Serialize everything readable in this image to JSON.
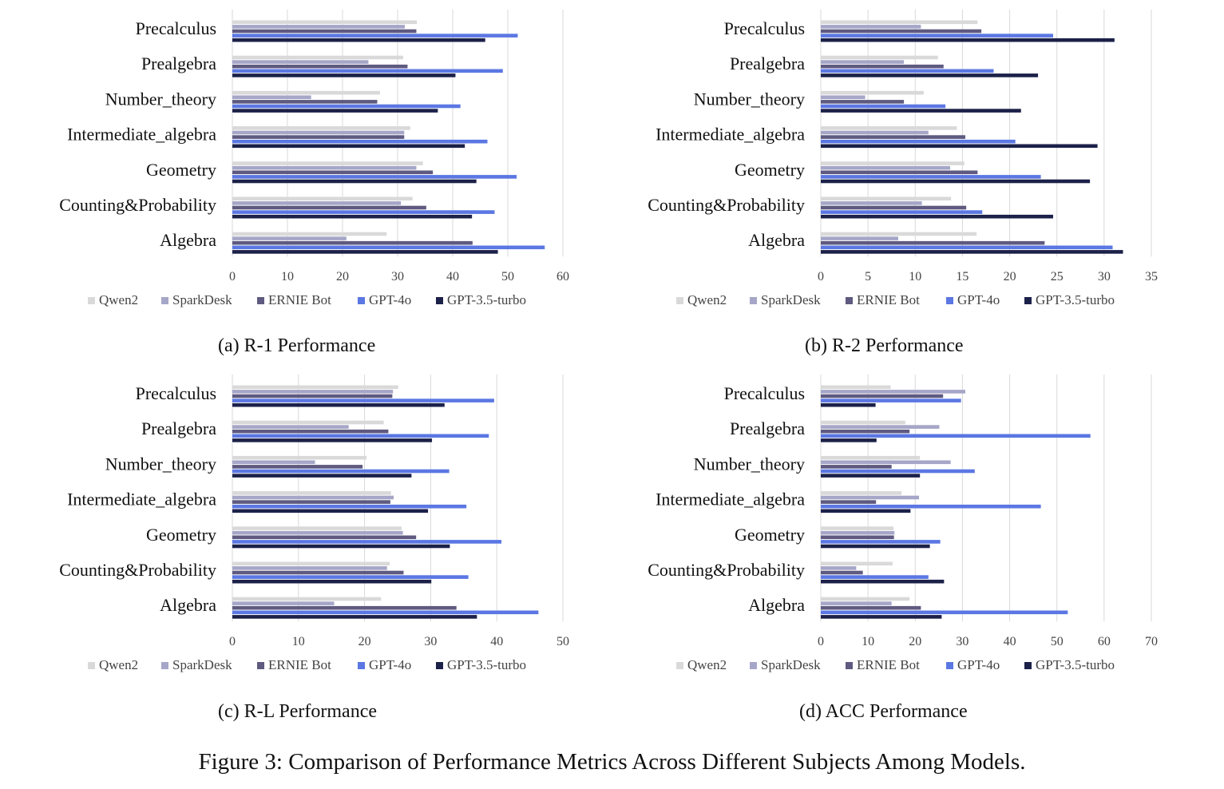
{
  "colors": {
    "Qwen2": "#d9d9d9",
    "SparkDesk": "#a6a6c8",
    "ERNIE Bot": "#5e5a80",
    "GPT-4o": "#5b77e3",
    "GPT-3.5-turbo": "#1c2149",
    "grid": "#d9d9d9"
  },
  "chart_data": [
    {
      "type": "bar",
      "orientation": "horizontal",
      "caption": "(a) R-1 Performance",
      "categories": [
        "Precalculus",
        "Prealgebra",
        "Number_theory",
        "Intermediate_algebra",
        "Geometry",
        "Counting&Probability",
        "Algebra"
      ],
      "xlim": [
        0,
        60
      ],
      "xticks": [
        0,
        10,
        20,
        30,
        40,
        50,
        60
      ],
      "grid": true,
      "legend_position": "bottom",
      "series": [
        {
          "name": "Qwen2",
          "values": [
            33.5,
            31,
            26.8,
            32.3,
            34.6,
            32.7,
            28
          ]
        },
        {
          "name": "SparkDesk",
          "values": [
            31.3,
            24.7,
            14.3,
            31.2,
            33.4,
            30.6,
            20.7
          ]
        },
        {
          "name": "ERNIE Bot",
          "values": [
            33.4,
            31.8,
            26.3,
            31.2,
            36.4,
            35.2,
            43.6
          ]
        },
        {
          "name": "GPT-4o",
          "values": [
            51.8,
            49.1,
            41.4,
            46.3,
            51.6,
            47.6,
            56.7
          ]
        },
        {
          "name": "GPT-3.5-turbo",
          "values": [
            45.9,
            40.5,
            37.3,
            42.2,
            44.3,
            43.5,
            48.2
          ]
        }
      ]
    },
    {
      "type": "bar",
      "orientation": "horizontal",
      "caption": "(b) R-2 Performance",
      "categories": [
        "Precalculus",
        "Prealgebra",
        "Number_theory",
        "Intermediate_algebra",
        "Geometry",
        "Counting&Probability",
        "Algebra"
      ],
      "xlim": [
        0,
        35
      ],
      "xticks": [
        0,
        5,
        10,
        15,
        20,
        25,
        30,
        35
      ],
      "grid": true,
      "legend_position": "bottom",
      "series": [
        {
          "name": "Qwen2",
          "values": [
            16.6,
            12.4,
            10.9,
            14.4,
            15.2,
            13.8,
            16.5
          ]
        },
        {
          "name": "SparkDesk",
          "values": [
            10.6,
            8.8,
            4.7,
            11.4,
            13.7,
            10.7,
            8.2
          ]
        },
        {
          "name": "ERNIE Bot",
          "values": [
            17,
            13,
            8.8,
            15.3,
            16.6,
            15.4,
            23.7
          ]
        },
        {
          "name": "GPT-4o",
          "values": [
            24.6,
            18.3,
            13.2,
            20.6,
            23.3,
            17.1,
            30.9
          ]
        },
        {
          "name": "GPT-3.5-turbo",
          "values": [
            31.1,
            23,
            21.2,
            29.3,
            28.5,
            24.6,
            32
          ]
        }
      ]
    },
    {
      "type": "bar",
      "orientation": "horizontal",
      "caption": "(c) R-L Performance",
      "categories": [
        "Precalculus",
        "Prealgebra",
        "Number_theory",
        "Intermediate_algebra",
        "Geometry",
        "Counting&Probability",
        "Algebra"
      ],
      "xlim": [
        0,
        50
      ],
      "xticks": [
        0,
        10,
        20,
        30,
        40,
        50
      ],
      "grid": true,
      "legend_position": "bottom",
      "series": [
        {
          "name": "Qwen2",
          "values": [
            25.1,
            22.9,
            20.3,
            24,
            25.6,
            23.8,
            22.5
          ]
        },
        {
          "name": "SparkDesk",
          "values": [
            24.3,
            17.6,
            12.5,
            24.4,
            25.8,
            23.4,
            15.4
          ]
        },
        {
          "name": "ERNIE Bot",
          "values": [
            24.2,
            23.6,
            19.7,
            23.9,
            27.8,
            25.9,
            33.9
          ]
        },
        {
          "name": "GPT-4o",
          "values": [
            39.6,
            38.8,
            32.8,
            35.4,
            40.7,
            35.7,
            46.3
          ]
        },
        {
          "name": "GPT-3.5-turbo",
          "values": [
            32.1,
            30.2,
            27.1,
            29.6,
            32.9,
            30.1,
            37
          ]
        }
      ]
    },
    {
      "type": "bar",
      "orientation": "horizontal",
      "caption": "(d) ACC Performance",
      "categories": [
        "Precalculus",
        "Prealgebra",
        "Number_theory",
        "Intermediate_algebra",
        "Geometry",
        "Counting&Probability",
        "Algebra"
      ],
      "xlim": [
        0,
        70
      ],
      "xticks": [
        0,
        10,
        20,
        30,
        40,
        50,
        60,
        70
      ],
      "grid": true,
      "legend_position": "bottom",
      "series": [
        {
          "name": "Qwen2",
          "values": [
            14.8,
            17.9,
            21,
            17.1,
            15.4,
            15.2,
            18.8
          ]
        },
        {
          "name": "SparkDesk",
          "values": [
            30.6,
            25.1,
            27.5,
            20.8,
            15.6,
            7.5,
            15
          ]
        },
        {
          "name": "ERNIE Bot",
          "values": [
            25.9,
            18.8,
            15,
            11.7,
            15.5,
            8.9,
            21.2
          ]
        },
        {
          "name": "GPT-4o",
          "values": [
            29.7,
            57.1,
            32.6,
            46.6,
            25.3,
            22.8,
            52.3
          ]
        },
        {
          "name": "GPT-3.5-turbo",
          "values": [
            11.6,
            11.8,
            21,
            19,
            23.1,
            26.1,
            25.6
          ]
        }
      ]
    }
  ],
  "figure_caption": "Figure 3: Comparison of Performance Metrics Across Different Subjects Among Models."
}
